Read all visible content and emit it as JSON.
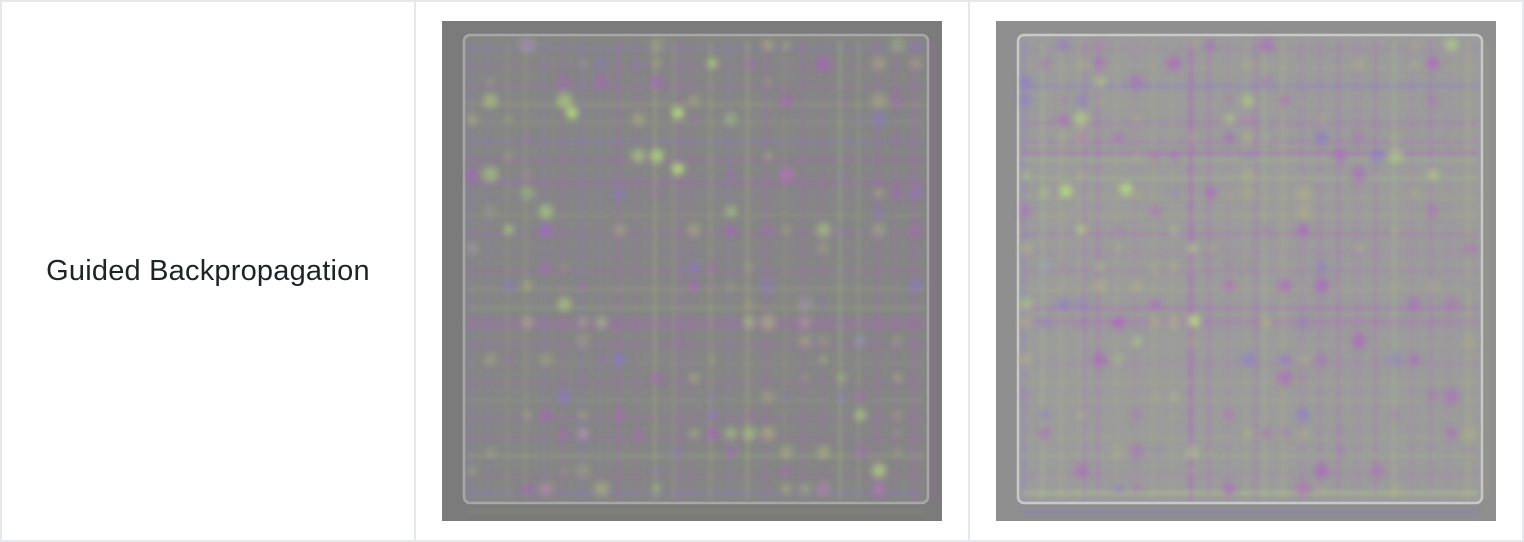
{
  "table": {
    "rows": [
      {
        "label": "Guided Backpropagation",
        "images": [
          {
            "name": "guided-backprop-map-1",
            "style": "dark",
            "background_color": "#7b7b7b",
            "inner_color": "#868686"
          },
          {
            "name": "guided-backprop-map-2",
            "style": "light",
            "background_color": "#8f8f8f",
            "inner_color": "#9c9c9c"
          }
        ]
      }
    ]
  },
  "colors": {
    "magenta": "#b25acb",
    "violet": "#8a74d8",
    "green": "#b8e27a",
    "olive": "#b3b77e",
    "border": "#e6e8eb",
    "text": "#1f2328"
  }
}
